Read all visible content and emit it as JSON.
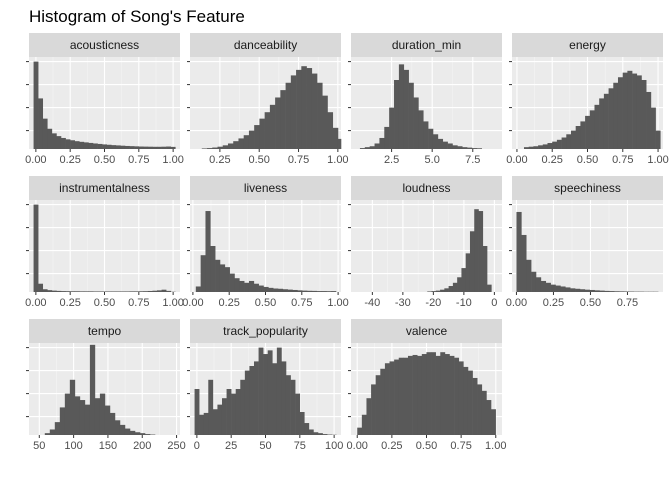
{
  "chart_data": {
    "type": "bar",
    "title": "Histogram of Song's Feature",
    "grid": true,
    "bar_color": "#595959",
    "panel_background": "#ebebeb",
    "strip_background": "#d9d9d9",
    "panels": [
      {
        "name": "acousticness",
        "xlim": [
          -0.05,
          1.05
        ],
        "x_ticks": [
          0,
          0.25,
          0.5,
          0.75,
          1
        ],
        "x_tick_labels": [
          "0.00",
          "0.25",
          "0.50",
          "0.75",
          "1.00"
        ],
        "bin_start": -0.0167,
        "bin_width": 0.0333,
        "ymax": 1.0,
        "counts": [
          0.95,
          0.55,
          0.33,
          0.22,
          0.17,
          0.14,
          0.12,
          0.105,
          0.095,
          0.085,
          0.078,
          0.072,
          0.066,
          0.06,
          0.055,
          0.05,
          0.046,
          0.042,
          0.039,
          0.036,
          0.033,
          0.031,
          0.029,
          0.027,
          0.026,
          0.025,
          0.024,
          0.024,
          0.025,
          0.027,
          0.023
        ]
      },
      {
        "name": "danceability",
        "xlim": [
          0.06,
          1.02
        ],
        "x_ticks": [
          0.25,
          0.5,
          0.75,
          1
        ],
        "x_tick_labels": [
          "0.25",
          "0.50",
          "0.75",
          "1.00"
        ],
        "bin_start": 0.135,
        "bin_width": 0.0333,
        "ymax": 1.0,
        "counts": [
          0.006,
          0.01,
          0.016,
          0.025,
          0.04,
          0.06,
          0.085,
          0.115,
          0.15,
          0.2,
          0.26,
          0.33,
          0.4,
          0.48,
          0.56,
          0.64,
          0.72,
          0.8,
          0.86,
          0.9,
          0.88,
          0.82,
          0.72,
          0.58,
          0.4,
          0.23,
          0.11,
          0.04
        ]
      },
      {
        "name": "duration_min",
        "xlim": [
          0,
          9.3
        ],
        "x_ticks": [
          2.5,
          5,
          7.5
        ],
        "x_tick_labels": [
          "2.5",
          "5.0",
          "7.5"
        ],
        "bin_start": 0.55,
        "bin_width": 0.3,
        "ymax": 1.0,
        "counts": [
          0.01,
          0.02,
          0.03,
          0.06,
          0.12,
          0.24,
          0.45,
          0.75,
          0.92,
          0.86,
          0.72,
          0.56,
          0.42,
          0.3,
          0.22,
          0.16,
          0.11,
          0.08,
          0.06,
          0.04,
          0.03,
          0.02,
          0.015,
          0.01,
          0.008
        ]
      },
      {
        "name": "energy",
        "xlim": [
          -0.035,
          1.035
        ],
        "x_ticks": [
          0,
          0.25,
          0.5,
          0.75,
          1
        ],
        "x_tick_labels": [
          "0.00",
          "0.25",
          "0.50",
          "0.75",
          "1.00"
        ],
        "bin_start": 0.05,
        "bin_width": 0.0333,
        "ymax": 1.0,
        "counts": [
          0.02,
          0.025,
          0.03,
          0.04,
          0.05,
          0.065,
          0.08,
          0.1,
          0.125,
          0.16,
          0.2,
          0.25,
          0.3,
          0.36,
          0.42,
          0.48,
          0.55,
          0.6,
          0.66,
          0.72,
          0.78,
          0.83,
          0.85,
          0.82,
          0.8,
          0.75,
          0.62,
          0.45,
          0.2
        ]
      },
      {
        "name": "instrumentalness",
        "xlim": [
          -0.05,
          1.05
        ],
        "x_ticks": [
          0,
          0.25,
          0.5,
          0.75,
          1
        ],
        "x_tick_labels": [
          "0.00",
          "0.25",
          "0.50",
          "0.75",
          "1.00"
        ],
        "bin_start": -0.0167,
        "bin_width": 0.0333,
        "ymax": 1.0,
        "counts": [
          0.95,
          0.09,
          0.03,
          0.02,
          0.015,
          0.012,
          0.01,
          0.009,
          0.008,
          0.008,
          0.007,
          0.007,
          0.007,
          0.006,
          0.006,
          0.006,
          0.006,
          0.006,
          0.006,
          0.006,
          0.006,
          0.007,
          0.007,
          0.008,
          0.009,
          0.011,
          0.014,
          0.018,
          0.025,
          0.012,
          0.003
        ]
      },
      {
        "name": "liveness",
        "xlim": [
          -0.02,
          1.02
        ],
        "x_ticks": [
          0,
          0.25,
          0.5,
          0.75,
          1
        ],
        "x_tick_labels": [
          "0.00",
          "0.25",
          "0.50",
          "0.75",
          "1.00"
        ],
        "bin_start": 0.02,
        "bin_width": 0.0333,
        "ymax": 1.0,
        "counts": [
          0.06,
          0.4,
          0.88,
          0.5,
          0.35,
          0.3,
          0.27,
          0.2,
          0.15,
          0.12,
          0.1,
          0.12,
          0.09,
          0.07,
          0.055,
          0.045,
          0.038,
          0.035,
          0.03,
          0.026,
          0.022,
          0.018,
          0.015,
          0.013,
          0.012,
          0.01,
          0.01,
          0.009,
          0.01
        ]
      },
      {
        "name": "loudness",
        "xlim": [
          -47,
          2.5
        ],
        "x_ticks": [
          -40,
          -30,
          -20,
          -10,
          0
        ],
        "x_tick_labels": [
          "-40",
          "-30",
          "-20",
          "-10",
          "0"
        ],
        "bin_start": -22,
        "bin_width": 1.4,
        "ymax": 1.0,
        "counts": [
          0.006,
          0.01,
          0.015,
          0.025,
          0.04,
          0.065,
          0.1,
          0.16,
          0.26,
          0.42,
          0.66,
          0.9,
          0.88,
          0.5,
          0.08
        ]
      },
      {
        "name": "speechiness",
        "xlim": [
          -0.03,
          0.99
        ],
        "x_ticks": [
          0,
          0.25,
          0.5,
          0.75
        ],
        "x_tick_labels": [
          "0.00",
          "0.25",
          "0.50",
          "0.75"
        ],
        "bin_start": 0.0,
        "bin_width": 0.033,
        "ymax": 1.0,
        "counts": [
          0.87,
          0.62,
          0.35,
          0.22,
          0.16,
          0.12,
          0.1,
          0.08,
          0.07,
          0.06,
          0.05,
          0.04,
          0.035,
          0.03,
          0.025,
          0.022,
          0.018,
          0.015,
          0.012,
          0.01,
          0.008,
          0.007,
          0.006,
          0.005,
          0.004,
          0.004,
          0.003,
          0.003,
          0.003
        ]
      },
      {
        "name": "tempo",
        "xlim": [
          35,
          255
        ],
        "x_ticks": [
          50,
          100,
          150,
          200,
          250
        ],
        "x_tick_labels": [
          "50",
          "100",
          "150",
          "200",
          "250"
        ],
        "bin_start": 58,
        "bin_width": 7.3,
        "ymax": 1.0,
        "counts": [
          0.02,
          0.06,
          0.14,
          0.3,
          0.45,
          0.6,
          0.42,
          0.38,
          0.33,
          0.98,
          0.4,
          0.45,
          0.32,
          0.24,
          0.16,
          0.11,
          0.07,
          0.045,
          0.03,
          0.02,
          0.01,
          0.005
        ]
      },
      {
        "name": "track_popularity",
        "xlim": [
          -5,
          105
        ],
        "x_ticks": [
          0,
          25,
          50,
          75,
          100
        ],
        "x_tick_labels": [
          "0",
          "25",
          "50",
          "75",
          "100"
        ],
        "bin_start": -1.67,
        "bin_width": 3.33,
        "ymax": 1.0,
        "counts": [
          0.5,
          0.22,
          0.24,
          0.6,
          0.28,
          0.33,
          0.4,
          0.5,
          0.45,
          0.5,
          0.6,
          0.7,
          0.75,
          0.8,
          0.95,
          0.88,
          0.92,
          0.78,
          0.95,
          0.8,
          0.65,
          0.6,
          0.45,
          0.25,
          0.13,
          0.06,
          0.03,
          0.02,
          0.01,
          0.005,
          0.003
        ]
      },
      {
        "name": "valence",
        "xlim": [
          -0.045,
          1.045
        ],
        "x_ticks": [
          0,
          0.25,
          0.5,
          0.75,
          1
        ],
        "x_tick_labels": [
          "0.00",
          "0.25",
          "0.50",
          "0.75",
          "1.00"
        ],
        "bin_start": 0.0,
        "bin_width": 0.0333,
        "ymax": 1.0,
        "counts": [
          0.08,
          0.22,
          0.4,
          0.55,
          0.65,
          0.72,
          0.78,
          0.8,
          0.82,
          0.84,
          0.84,
          0.86,
          0.87,
          0.86,
          0.88,
          0.9,
          0.9,
          0.86,
          0.9,
          0.88,
          0.86,
          0.84,
          0.8,
          0.74,
          0.7,
          0.62,
          0.55,
          0.48,
          0.38,
          0.28
        ]
      }
    ]
  }
}
